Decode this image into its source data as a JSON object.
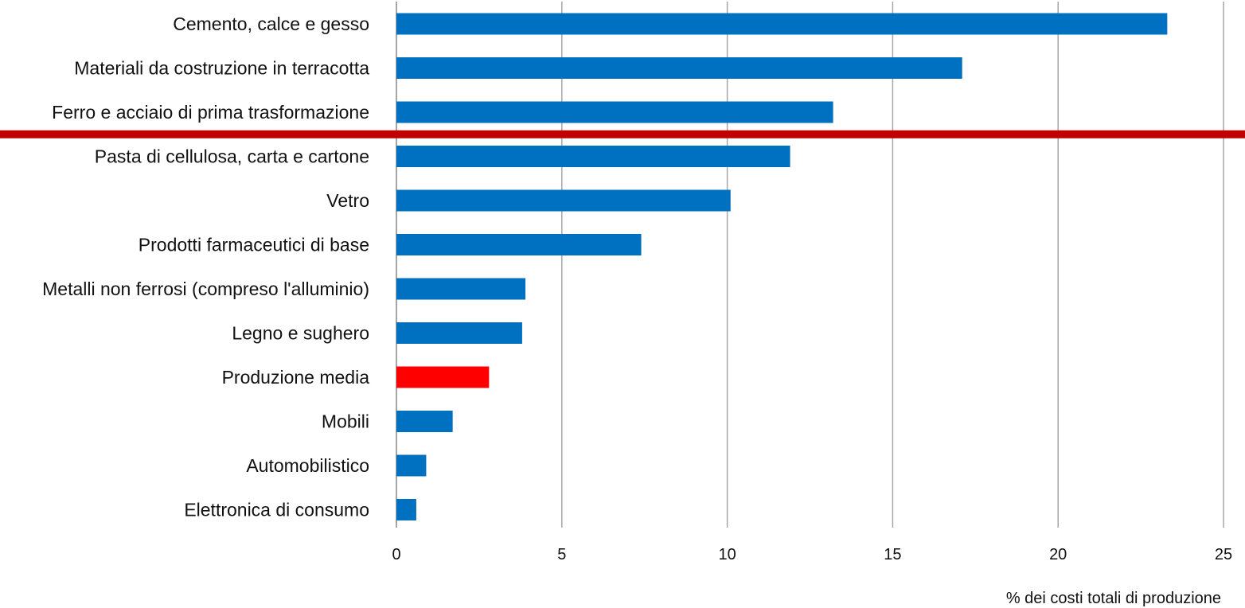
{
  "chart_data": {
    "type": "bar",
    "orientation": "horizontal",
    "categories": [
      "Cemento, calce e gesso",
      "Materiali da costruzione in terracotta",
      "Ferro e acciaio di prima trasformazione",
      "Pasta di cellulosa, carta e cartone",
      "Vetro",
      "Prodotti farmaceutici di base",
      "Metalli non ferrosi (compreso l'alluminio)",
      "Legno e sughero",
      "Produzione media",
      "Mobili",
      "Automobilistico",
      "Elettronica di consumo"
    ],
    "values": [
      23.3,
      17.1,
      13.2,
      11.9,
      10.1,
      7.4,
      3.9,
      3.8,
      2.8,
      1.7,
      0.9,
      0.6
    ],
    "highlight_category": "Produzione media",
    "colors": {
      "bar": "#0070C0",
      "highlight": "#FF0000",
      "threshold_line": "#C00000",
      "grid": "#A6A6A6",
      "text": "#111111"
    },
    "threshold_after_category": "Ferro e acciaio di prima trasformazione",
    "xlabel": "% dei costi totali di produzione",
    "xlim": [
      0,
      25
    ],
    "xticks": [
      0,
      5,
      10,
      15,
      20,
      25
    ],
    "grid": "vertical"
  }
}
